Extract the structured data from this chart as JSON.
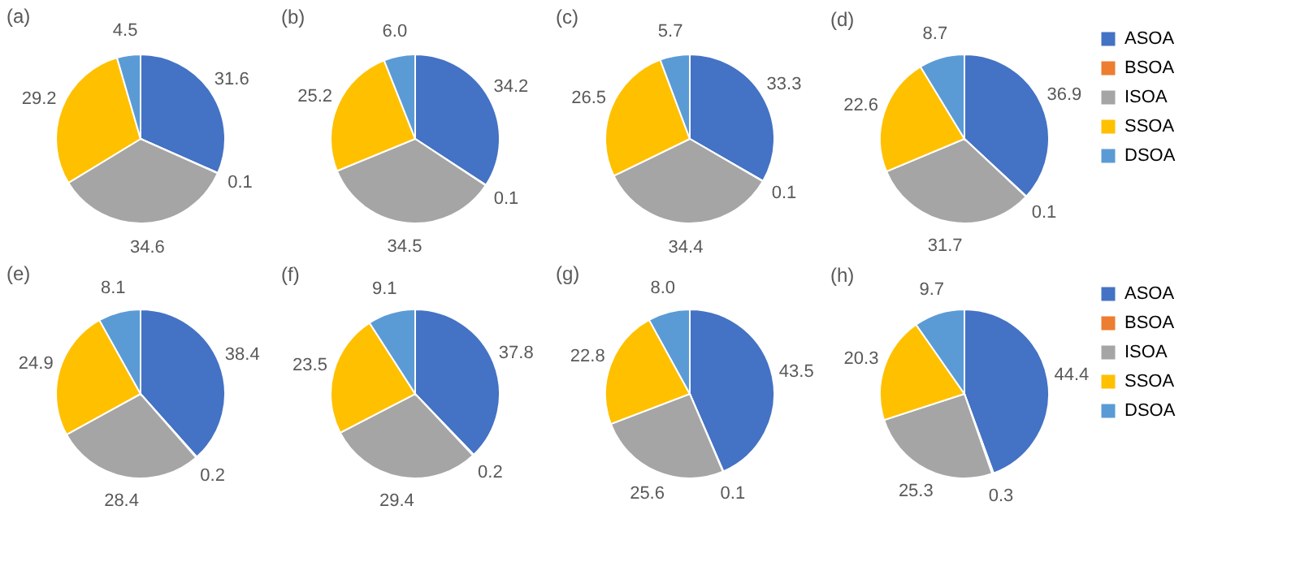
{
  "chart_data": [
    {
      "type": "pie",
      "title": "(a)",
      "categories": [
        null,
        null,
        null,
        null,
        null
      ],
      "values": [
        31.6,
        0.1,
        34.6,
        29.2,
        4.5
      ],
      "value_labels": [
        "31.6",
        "0.1",
        "34.6",
        "29.2",
        "4.5"
      ],
      "colors": [
        "#4472c4",
        "#ed7d31",
        "#a5a5a5",
        "#ffc000",
        "#5b9bd5"
      ],
      "legend": false
    },
    {
      "type": "pie",
      "title": "(b)",
      "categories": [
        null,
        null,
        null,
        null,
        null
      ],
      "values": [
        34.2,
        0.1,
        34.5,
        25.2,
        6.0
      ],
      "value_labels": [
        "34.2",
        "0.1",
        "34.5",
        "25.2",
        "6.0"
      ],
      "colors": [
        "#4472c4",
        "#ed7d31",
        "#a5a5a5",
        "#ffc000",
        "#5b9bd5"
      ],
      "legend": false
    },
    {
      "type": "pie",
      "title": "(c)",
      "categories": [
        null,
        null,
        null,
        null,
        null
      ],
      "values": [
        33.3,
        0.1,
        34.4,
        26.5,
        5.7
      ],
      "value_labels": [
        "33.3",
        "0.1",
        "34.4",
        "26.5",
        "5.7"
      ],
      "colors": [
        "#4472c4",
        "#ed7d31",
        "#a5a5a5",
        "#ffc000",
        "#5b9bd5"
      ],
      "legend": false
    },
    {
      "type": "pie",
      "title": "(d)",
      "categories": [
        "ASOA",
        "BSOA",
        "ISOA",
        "SSOA",
        "DSOA"
      ],
      "values": [
        36.9,
        0.1,
        31.7,
        22.6,
        8.7
      ],
      "value_labels": [
        "36.9",
        "0.1",
        "31.7",
        "22.6",
        "8.7"
      ],
      "colors": [
        "#4472c4",
        "#ed7d31",
        "#a5a5a5",
        "#ffc000",
        "#5b9bd5"
      ],
      "legend": "right"
    },
    {
      "type": "pie",
      "title": "(e)",
      "categories": [
        null,
        null,
        null,
        null,
        null
      ],
      "values": [
        38.4,
        0.2,
        28.4,
        24.9,
        8.1
      ],
      "value_labels": [
        "38.4",
        "0.2",
        "28.4",
        "24.9",
        "8.1"
      ],
      "colors": [
        "#4472c4",
        "#ed7d31",
        "#a5a5a5",
        "#ffc000",
        "#5b9bd5"
      ],
      "legend": false
    },
    {
      "type": "pie",
      "title": "(f)",
      "categories": [
        null,
        null,
        null,
        null,
        null
      ],
      "values": [
        37.8,
        0.2,
        29.4,
        23.5,
        9.1
      ],
      "value_labels": [
        "37.8",
        "0.2",
        "29.4",
        "23.5",
        "9.1"
      ],
      "colors": [
        "#4472c4",
        "#ed7d31",
        "#a5a5a5",
        "#ffc000",
        "#5b9bd5"
      ],
      "legend": false
    },
    {
      "type": "pie",
      "title": "(g)",
      "categories": [
        null,
        null,
        null,
        null,
        null
      ],
      "values": [
        43.5,
        0.1,
        25.6,
        22.8,
        8.0
      ],
      "value_labels": [
        "43.5",
        "0.1",
        "25.6",
        "22.8",
        "8.0"
      ],
      "colors": [
        "#4472c4",
        "#ed7d31",
        "#a5a5a5",
        "#ffc000",
        "#5b9bd5"
      ],
      "legend": false
    },
    {
      "type": "pie",
      "title": "(h)",
      "categories": [
        "ASOA",
        "BSOA",
        "ISOA",
        "SSOA",
        "DSOA"
      ],
      "values": [
        44.4,
        0.3,
        25.3,
        20.3,
        9.7
      ],
      "value_labels": [
        "44.4",
        "0.3",
        "25.3",
        "20.3",
        "9.7"
      ],
      "colors": [
        "#4472c4",
        "#ed7d31",
        "#a5a5a5",
        "#ffc000",
        "#5b9bd5"
      ],
      "legend": "right"
    }
  ]
}
